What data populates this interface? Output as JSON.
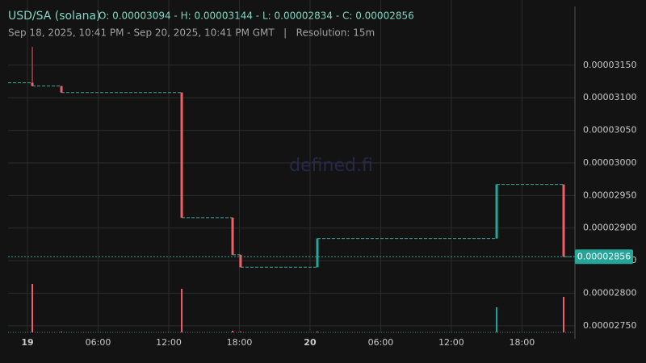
{
  "chart_data": {
    "type": "candlestick",
    "title": "USD/SA (solana)",
    "ohlc_header": "O: 0.00003094 - H: 0.00003144 - L: 0.00002834 - C: 0.00002856",
    "subtitle": "Sep 18, 2025, 10:41 PM - Sep 20, 2025, 10:41 PM GMT   |   Resolution: 15m",
    "watermark": "defined.fi",
    "x": [
      0.41,
      2.88,
      13.1,
      17.42,
      18.1,
      24.62,
      39.85,
      45.54
    ],
    "open": [
      3.123e-05,
      3.118e-05,
      3.108e-05,
      2.916e-05,
      2.859e-05,
      2.84e-05,
      2.884e-05,
      2.967e-05
    ],
    "high": [
      3.178e-05,
      3.118e-05,
      3.108e-05,
      2.916e-05,
      2.859e-05,
      2.884e-05,
      2.967e-05,
      2.967e-05
    ],
    "low": [
      3.118e-05,
      3.108e-05,
      2.916e-05,
      2.859e-05,
      2.84e-05,
      2.84e-05,
      2.884e-05,
      2.856e-05
    ],
    "close": [
      3.118e-05,
      3.108e-05,
      2.916e-05,
      2.859e-05,
      2.84e-05,
      2.884e-05,
      2.967e-05,
      2.856e-05
    ],
    "volume": [
      60,
      1,
      54,
      2,
      1,
      1,
      31,
      44
    ],
    "volume_lim": [
      0,
      100
    ],
    "up_color": "#26a69a",
    "down_color": "#ef5f67",
    "xlim": [
      -1.65,
      46.5
    ],
    "xticks": [
      {
        "value": 0,
        "label": "19"
      },
      {
        "value": 6,
        "label": "06:00"
      },
      {
        "value": 12,
        "label": "12:00"
      },
      {
        "value": 18,
        "label": "18:00"
      },
      {
        "value": 24,
        "label": "20"
      },
      {
        "value": 30,
        "label": "06:00"
      },
      {
        "value": 36,
        "label": "12:00"
      },
      {
        "value": 42,
        "label": "18:00"
      }
    ],
    "ylim": [
      2.74e-05,
      3.25e-05
    ],
    "yticks": [
      {
        "value": 2.75e-05,
        "label": "0.00002750"
      },
      {
        "value": 2.8e-05,
        "label": "0.00002800"
      },
      {
        "value": 2.85e-05,
        "label": "0.00002850"
      },
      {
        "value": 2.9e-05,
        "label": "0.00002900"
      },
      {
        "value": 2.95e-05,
        "label": "0.00002950"
      },
      {
        "value": 3e-05,
        "label": "0.00003000"
      },
      {
        "value": 3.05e-05,
        "label": "0.00003050"
      },
      {
        "value": 3.1e-05,
        "label": "0.00003100"
      },
      {
        "value": 3.15e-05,
        "label": "0.00003150"
      }
    ],
    "grid": true
  }
}
